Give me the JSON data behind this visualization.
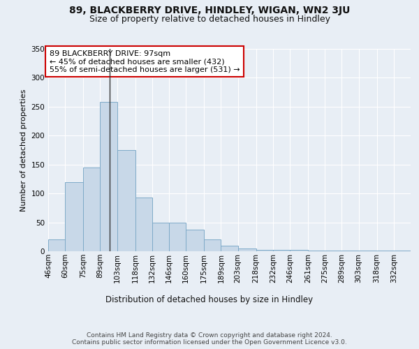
{
  "title1": "89, BLACKBERRY DRIVE, HINDLEY, WIGAN, WN2 3JU",
  "title2": "Size of property relative to detached houses in Hindley",
  "xlabel": "Distribution of detached houses by size in Hindley",
  "ylabel": "Number of detached properties",
  "bins": [
    46,
    60,
    75,
    89,
    103,
    118,
    132,
    146,
    160,
    175,
    189,
    203,
    218,
    232,
    246,
    261,
    275,
    289,
    303,
    318,
    332,
    346
  ],
  "bar_heights": [
    20,
    120,
    145,
    258,
    175,
    93,
    50,
    50,
    38,
    20,
    10,
    5,
    3,
    2,
    2,
    1,
    1,
    1,
    1,
    1,
    1
  ],
  "bar_color": "#c8d8e8",
  "bar_edge_color": "#7eaac8",
  "property_size": 97,
  "vline_color": "#333333",
  "annotation_text": "89 BLACKBERRY DRIVE: 97sqm\n← 45% of detached houses are smaller (432)\n55% of semi-detached houses are larger (531) →",
  "annotation_box_color": "#ffffff",
  "annotation_box_edge": "#cc0000",
  "ylim": [
    0,
    350
  ],
  "bg_color": "#e8eef5",
  "plot_bg_color": "#e8eef5",
  "grid_color": "#ffffff",
  "footer_text": "Contains HM Land Registry data © Crown copyright and database right 2024.\nContains public sector information licensed under the Open Government Licence v3.0.",
  "title1_fontsize": 10,
  "title2_fontsize": 9,
  "xlabel_fontsize": 8.5,
  "ylabel_fontsize": 8,
  "tick_fontsize": 7.5,
  "footer_fontsize": 6.5,
  "ann_fontsize": 8
}
